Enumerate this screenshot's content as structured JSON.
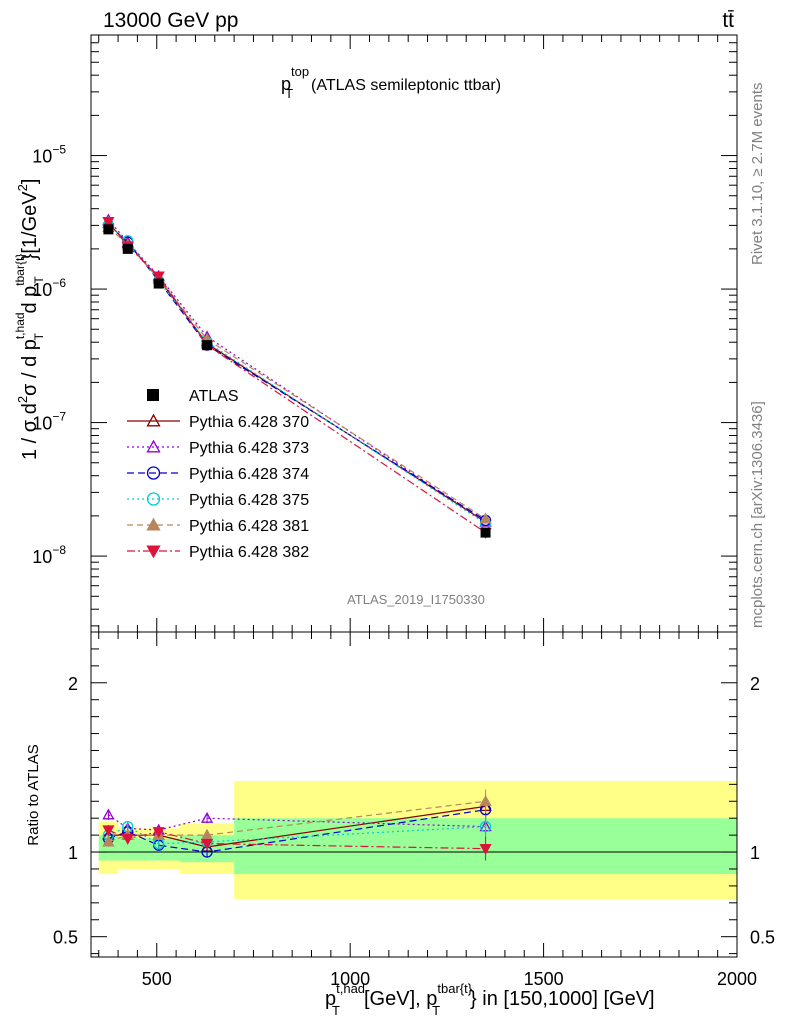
{
  "header": {
    "left": "13000 GeV pp",
    "right": "tt̄"
  },
  "side_texts": {
    "rivet": "Rivet 3.1.10, ≥ 2.7M events",
    "mcplots": "mcplots.cern.ch [arXiv:1306.3436]"
  },
  "analysis_label": "ATLAS_2019_I1750330",
  "title": {
    "base": "p",
    "sup": "top",
    "sub": "T",
    "rest": "(ATLAS semileptonic ttbar)"
  },
  "ylabel_main": {
    "a": "1 / σ d",
    "b": "2",
    "c": "σ / d p",
    "d": "t,had",
    "e": "T",
    "f": " d p",
    "g": "tbar{t}",
    "h": "T",
    "i": "}[1/GeV",
    "j": "2",
    "k": "]"
  },
  "ylabel_ratio": "Ratio to ATLAS",
  "xlabel": {
    "p1": "p",
    "sup1": "t,had",
    "sub1": "T",
    "mid": "[GeV], p",
    "sup2": "tbar{t}",
    "sub2": "T",
    "end": "} in [150,1000] [GeV]"
  },
  "chart_data": {
    "type": "line",
    "x_range": [
      330,
      2000
    ],
    "x_ticks": [
      500,
      1000,
      1500,
      2000
    ],
    "x_tick_labels": [
      "500",
      "1000",
      "1500",
      "2000"
    ],
    "main": {
      "y_scale": "log",
      "y_range": [
        2.7e-09,
        8e-05
      ],
      "y_ticks": [
        1e-08,
        1e-07,
        1e-06,
        1e-05
      ],
      "y_tick_labels": [
        {
          "base": "10",
          "exp": "−8"
        },
        {
          "base": "10",
          "exp": "−7"
        },
        {
          "base": "10",
          "exp": "−6"
        },
        {
          "base": "10",
          "exp": "−5"
        }
      ]
    },
    "ratio": {
      "y_range": [
        0.38,
        2.3
      ],
      "y_ticks": [
        0.5,
        1,
        2
      ],
      "y_tick_labels": [
        "0.5",
        "1",
        "2"
      ],
      "ref_line": 1.0,
      "bands": [
        {
          "x0": 350,
          "x1": 400,
          "g_lo": 0.95,
          "g_hi": 1.1,
          "y_lo": 0.87,
          "y_hi": 1.18
        },
        {
          "x0": 400,
          "x1": 450,
          "g_lo": 0.95,
          "g_hi": 1.09,
          "y_lo": 0.9,
          "y_hi": 1.15
        },
        {
          "x0": 450,
          "x1": 560,
          "g_lo": 0.95,
          "g_hi": 1.08,
          "y_lo": 0.9,
          "y_hi": 1.14
        },
        {
          "x0": 560,
          "x1": 700,
          "g_lo": 0.94,
          "g_hi": 1.1,
          "y_lo": 0.87,
          "y_hi": 1.17
        },
        {
          "x0": 700,
          "x1": 2000,
          "g_lo": 0.87,
          "g_hi": 1.2,
          "y_lo": 0.72,
          "y_hi": 1.42
        }
      ]
    },
    "data": {
      "name": "ATLAS",
      "x": [
        375,
        425,
        505,
        630,
        1350
      ],
      "y": [
        2.8e-06,
        2e-06,
        1.1e-06,
        3.8e-07,
        1.5e-08
      ]
    },
    "series": [
      {
        "name": "Pythia 6.428 370",
        "color": "#8b0000",
        "dash": "",
        "marker": "triangle-up-open",
        "x": [
          375,
          425,
          505,
          630,
          1350
        ],
        "y": [
          3.1e-06,
          2.2e-06,
          1.2e-06,
          3.9e-07,
          1.8e-08
        ],
        "ratio": [
          1.1,
          1.1,
          1.1,
          1.03,
          1.27
        ]
      },
      {
        "name": "Pythia 6.428 373",
        "color": "#9400d3",
        "dash": "2,3",
        "marker": "triangle-up-open",
        "x": [
          375,
          425,
          505,
          630,
          1350
        ],
        "y": [
          3.3e-06,
          2.25e-06,
          1.25e-06,
          4.4e-07,
          1.8e-08
        ],
        "ratio": [
          1.22,
          1.14,
          1.13,
          1.2,
          1.15
        ]
      },
      {
        "name": "Pythia 6.428 374",
        "color": "#0000cd",
        "dash": "7,4",
        "marker": "circle-open",
        "x": [
          375,
          425,
          505,
          630,
          1350
        ],
        "y": [
          3e-06,
          2.25e-06,
          1.15e-06,
          3.8e-07,
          1.85e-08
        ],
        "ratio": [
          1.08,
          1.12,
          1.04,
          1.0,
          1.25
        ]
      },
      {
        "name": "Pythia 6.428 375",
        "color": "#00ced1",
        "dash": "2,3",
        "marker": "circle-open",
        "x": [
          375,
          425,
          505,
          630,
          1350
        ],
        "y": [
          3e-06,
          2.3e-06,
          1.15e-06,
          4e-07,
          1.75e-08
        ],
        "ratio": [
          1.1,
          1.15,
          1.05,
          1.06,
          1.15
        ]
      },
      {
        "name": "Pythia 6.428 381",
        "color": "#b8865b",
        "dash": "6,4",
        "marker": "triangle-up-filled",
        "x": [
          375,
          425,
          505,
          630,
          1350
        ],
        "y": [
          2.9e-06,
          2.15e-06,
          1.2e-06,
          4.2e-07,
          1.9e-08
        ],
        "ratio": [
          1.06,
          1.1,
          1.1,
          1.1,
          1.3
        ]
      },
      {
        "name": "Pythia 6.428 382",
        "color": "#dc143c",
        "dash": "8,3,2,3",
        "marker": "triangle-down-filled",
        "x": [
          375,
          425,
          505,
          630,
          1350
        ],
        "y": [
          3.2e-06,
          2.1e-06,
          1.25e-06,
          3.8e-07,
          1.5e-08
        ],
        "ratio": [
          1.13,
          1.08,
          1.12,
          1.05,
          1.02
        ]
      }
    ]
  }
}
